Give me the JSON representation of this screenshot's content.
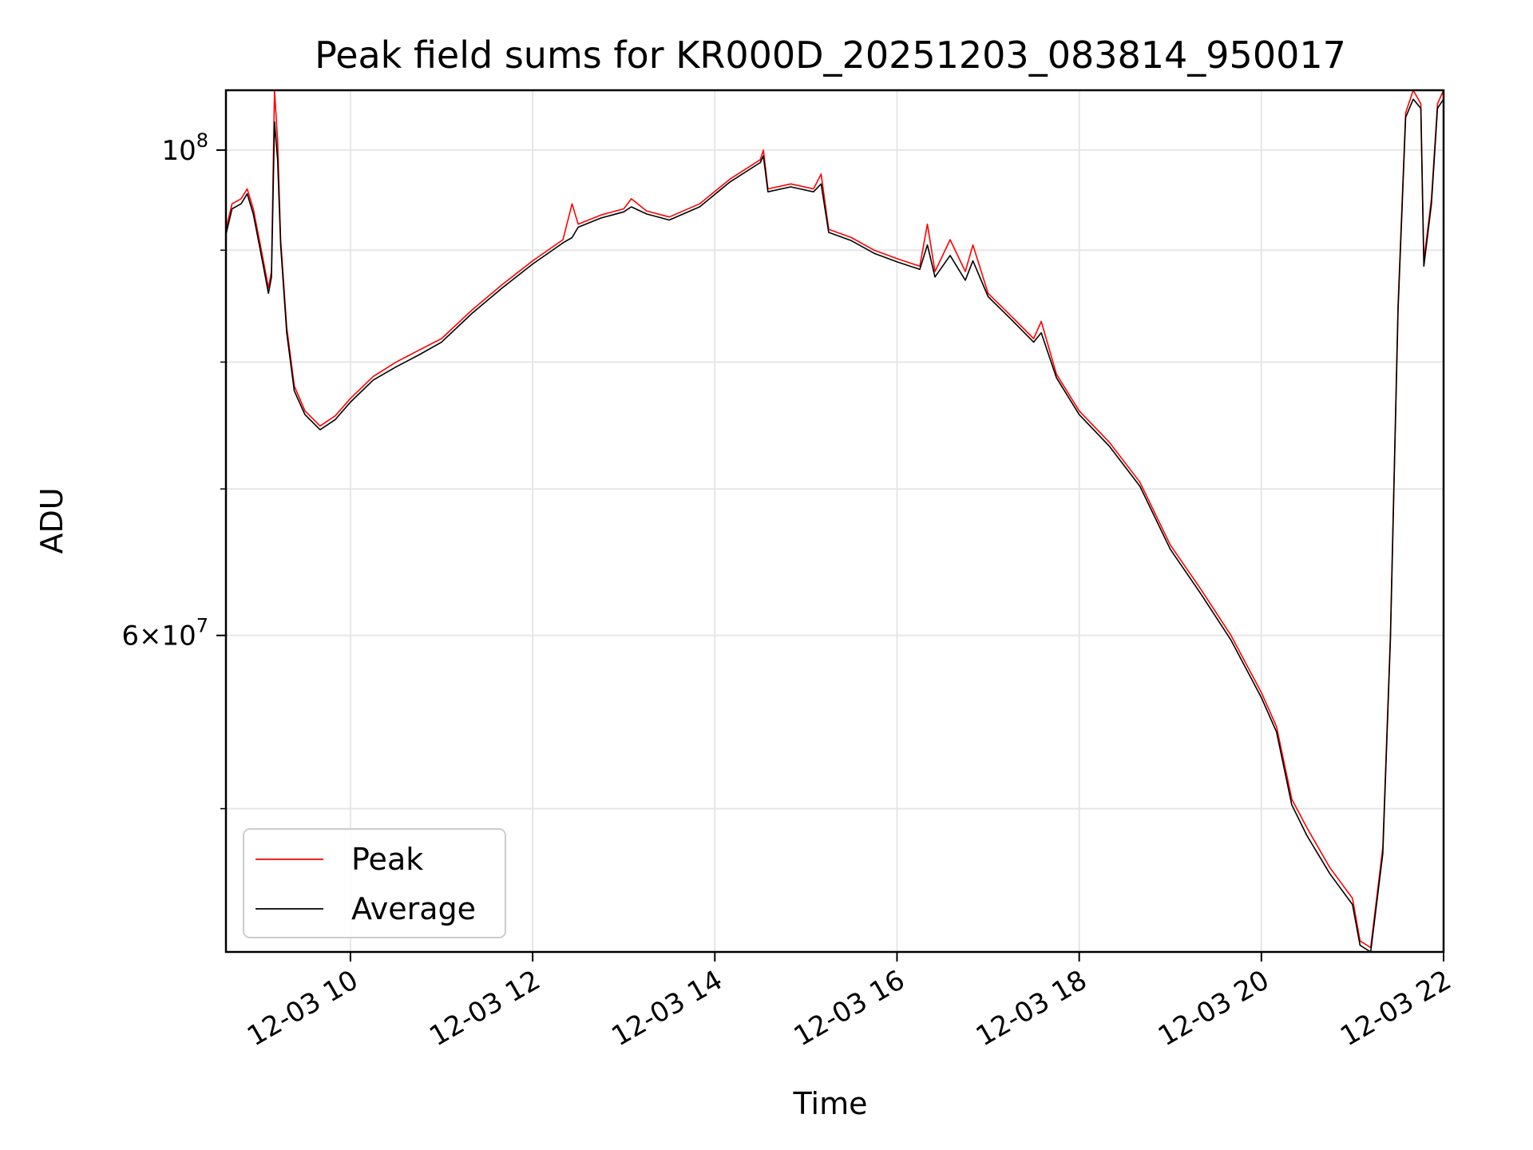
{
  "chart_data": {
    "type": "line",
    "title": "Peak field sums for KR000D_20251203_083814_950017",
    "xlabel": "Time",
    "ylabel": "ADU",
    "x_ticks": [
      "12-03 10",
      "12-03 12",
      "12-03 14",
      "12-03 16",
      "12-03 18",
      "12-03 20",
      "12-03 22"
    ],
    "y_ticks": [
      {
        "value": 60000000,
        "base": "6×10",
        "exp": "7"
      },
      {
        "value": 100000000,
        "base": "10",
        "exp": "8"
      }
    ],
    "y_minor_ticks": [
      50000000,
      70000000,
      80000000,
      90000000
    ],
    "y_scale": "log",
    "xlim": [
      "2025-12-03 08:38",
      "2025-12-03 22:00"
    ],
    "ylim": [
      43000000,
      106500000
    ],
    "grid": true,
    "legend_location": "lower-left",
    "colors": {
      "peak": "#ff0000",
      "average": "#000000",
      "grid": "#e6e6e6"
    },
    "series": [
      {
        "name": "Peak",
        "color": "#ff0000",
        "points": [
          [
            "2025-12-03 08:38",
            92000000
          ],
          [
            "2025-12-03 08:42",
            94500000
          ],
          [
            "2025-12-03 08:48",
            95000000
          ],
          [
            "2025-12-03 08:52",
            96000000
          ],
          [
            "2025-12-03 08:56",
            94000000
          ],
          [
            "2025-12-03 09:00",
            91000000
          ],
          [
            "2025-12-03 09:04",
            88000000
          ],
          [
            "2025-12-03 09:06",
            86500000
          ],
          [
            "2025-12-03 09:08",
            88000000
          ],
          [
            "2025-12-03 09:10",
            106500000
          ],
          [
            "2025-12-03 09:12",
            101000000
          ],
          [
            "2025-12-03 09:14",
            91000000
          ],
          [
            "2025-12-03 09:18",
            83000000
          ],
          [
            "2025-12-03 09:23",
            78000000
          ],
          [
            "2025-12-03 09:30",
            76000000
          ],
          [
            "2025-12-03 09:40",
            74800000
          ],
          [
            "2025-12-03 09:50",
            75600000
          ],
          [
            "2025-12-03 10:00",
            77000000
          ],
          [
            "2025-12-03 10:15",
            78800000
          ],
          [
            "2025-12-03 10:30",
            80000000
          ],
          [
            "2025-12-03 10:45",
            81000000
          ],
          [
            "2025-12-03 11:00",
            82000000
          ],
          [
            "2025-12-03 11:20",
            84500000
          ],
          [
            "2025-12-03 11:40",
            86800000
          ],
          [
            "2025-12-03 12:00",
            89000000
          ],
          [
            "2025-12-03 12:20",
            91000000
          ],
          [
            "2025-12-03 12:26",
            94500000
          ],
          [
            "2025-12-03 12:30",
            92500000
          ],
          [
            "2025-12-03 12:45",
            93400000
          ],
          [
            "2025-12-03 13:00",
            94000000
          ],
          [
            "2025-12-03 13:05",
            95000000
          ],
          [
            "2025-12-03 13:15",
            93800000
          ],
          [
            "2025-12-03 13:30",
            93200000
          ],
          [
            "2025-12-03 13:50",
            94500000
          ],
          [
            "2025-12-03 14:10",
            97000000
          ],
          [
            "2025-12-03 14:30",
            99000000
          ],
          [
            "2025-12-03 14:32",
            100000000
          ],
          [
            "2025-12-03 14:35",
            96000000
          ],
          [
            "2025-12-03 14:50",
            96500000
          ],
          [
            "2025-12-03 15:05",
            96000000
          ],
          [
            "2025-12-03 15:10",
            97500000
          ],
          [
            "2025-12-03 15:15",
            92000000
          ],
          [
            "2025-12-03 15:30",
            91200000
          ],
          [
            "2025-12-03 15:45",
            90000000
          ],
          [
            "2025-12-03 16:00",
            89200000
          ],
          [
            "2025-12-03 16:15",
            88500000
          ],
          [
            "2025-12-03 16:20",
            92500000
          ],
          [
            "2025-12-03 16:25",
            88000000
          ],
          [
            "2025-12-03 16:35",
            91000000
          ],
          [
            "2025-12-03 16:45",
            88000000
          ],
          [
            "2025-12-03 16:50",
            90500000
          ],
          [
            "2025-12-03 17:00",
            86000000
          ],
          [
            "2025-12-03 17:15",
            84000000
          ],
          [
            "2025-12-03 17:30",
            82000000
          ],
          [
            "2025-12-03 17:35",
            83500000
          ],
          [
            "2025-12-03 17:45",
            79000000
          ],
          [
            "2025-12-03 18:00",
            76000000
          ],
          [
            "2025-12-03 18:20",
            73500000
          ],
          [
            "2025-12-03 18:40",
            70500000
          ],
          [
            "2025-12-03 19:00",
            66000000
          ],
          [
            "2025-12-03 19:20",
            63000000
          ],
          [
            "2025-12-03 19:40",
            60000000
          ],
          [
            "2025-12-03 20:00",
            56500000
          ],
          [
            "2025-12-03 20:10",
            54500000
          ],
          [
            "2025-12-03 20:20",
            50500000
          ],
          [
            "2025-12-03 20:30",
            49000000
          ],
          [
            "2025-12-03 20:45",
            47000000
          ],
          [
            "2025-12-03 21:00",
            45500000
          ],
          [
            "2025-12-03 21:05",
            43500000
          ],
          [
            "2025-12-03 21:12",
            43200000
          ],
          [
            "2025-12-03 21:20",
            48000000
          ],
          [
            "2025-12-03 21:25",
            60000000
          ],
          [
            "2025-12-03 21:30",
            85000000
          ],
          [
            "2025-12-03 21:35",
            104000000
          ],
          [
            "2025-12-03 21:40",
            106500000
          ],
          [
            "2025-12-03 21:45",
            105000000
          ],
          [
            "2025-12-03 21:47",
            89000000
          ],
          [
            "2025-12-03 21:52",
            95000000
          ],
          [
            "2025-12-03 21:56",
            105000000
          ],
          [
            "2025-12-03 22:00",
            106500000
          ]
        ]
      },
      {
        "name": "Average",
        "color": "#000000",
        "points": [
          [
            "2025-12-03 08:38",
            91500000
          ],
          [
            "2025-12-03 08:42",
            94000000
          ],
          [
            "2025-12-03 08:48",
            94500000
          ],
          [
            "2025-12-03 08:52",
            95500000
          ],
          [
            "2025-12-03 08:56",
            93500000
          ],
          [
            "2025-12-03 09:00",
            90500000
          ],
          [
            "2025-12-03 09:04",
            87500000
          ],
          [
            "2025-12-03 09:06",
            86000000
          ],
          [
            "2025-12-03 09:08",
            87500000
          ],
          [
            "2025-12-03 09:10",
            103000000
          ],
          [
            "2025-12-03 09:12",
            99000000
          ],
          [
            "2025-12-03 09:14",
            90500000
          ],
          [
            "2025-12-03 09:18",
            82500000
          ],
          [
            "2025-12-03 09:23",
            77600000
          ],
          [
            "2025-12-03 09:30",
            75700000
          ],
          [
            "2025-12-03 09:40",
            74500000
          ],
          [
            "2025-12-03 09:50",
            75300000
          ],
          [
            "2025-12-03 10:00",
            76700000
          ],
          [
            "2025-12-03 10:15",
            78500000
          ],
          [
            "2025-12-03 10:30",
            79600000
          ],
          [
            "2025-12-03 10:45",
            80600000
          ],
          [
            "2025-12-03 11:00",
            81700000
          ],
          [
            "2025-12-03 11:20",
            84200000
          ],
          [
            "2025-12-03 11:40",
            86500000
          ],
          [
            "2025-12-03 12:00",
            88700000
          ],
          [
            "2025-12-03 12:20",
            90700000
          ],
          [
            "2025-12-03 12:26",
            91200000
          ],
          [
            "2025-12-03 12:30",
            92200000
          ],
          [
            "2025-12-03 12:45",
            93100000
          ],
          [
            "2025-12-03 13:00",
            93700000
          ],
          [
            "2025-12-03 13:05",
            94200000
          ],
          [
            "2025-12-03 13:15",
            93500000
          ],
          [
            "2025-12-03 13:30",
            92900000
          ],
          [
            "2025-12-03 13:50",
            94200000
          ],
          [
            "2025-12-03 14:10",
            96700000
          ],
          [
            "2025-12-03 14:30",
            98700000
          ],
          [
            "2025-12-03 14:32",
            99400000
          ],
          [
            "2025-12-03 14:35",
            95700000
          ],
          [
            "2025-12-03 14:50",
            96200000
          ],
          [
            "2025-12-03 15:05",
            95700000
          ],
          [
            "2025-12-03 15:10",
            96500000
          ],
          [
            "2025-12-03 15:15",
            91700000
          ],
          [
            "2025-12-03 15:30",
            90900000
          ],
          [
            "2025-12-03 15:45",
            89700000
          ],
          [
            "2025-12-03 16:00",
            88900000
          ],
          [
            "2025-12-03 16:15",
            88200000
          ],
          [
            "2025-12-03 16:20",
            90500000
          ],
          [
            "2025-12-03 16:25",
            87500000
          ],
          [
            "2025-12-03 16:35",
            89500000
          ],
          [
            "2025-12-03 16:45",
            87200000
          ],
          [
            "2025-12-03 16:50",
            89000000
          ],
          [
            "2025-12-03 17:00",
            85700000
          ],
          [
            "2025-12-03 17:15",
            83700000
          ],
          [
            "2025-12-03 17:30",
            81700000
          ],
          [
            "2025-12-03 17:35",
            82500000
          ],
          [
            "2025-12-03 17:45",
            78700000
          ],
          [
            "2025-12-03 18:00",
            75700000
          ],
          [
            "2025-12-03 18:20",
            73200000
          ],
          [
            "2025-12-03 18:40",
            70200000
          ],
          [
            "2025-12-03 19:00",
            65700000
          ],
          [
            "2025-12-03 19:20",
            62700000
          ],
          [
            "2025-12-03 19:40",
            59700000
          ],
          [
            "2025-12-03 20:00",
            56200000
          ],
          [
            "2025-12-03 20:10",
            54200000
          ],
          [
            "2025-12-03 20:20",
            50200000
          ],
          [
            "2025-12-03 20:30",
            48600000
          ],
          [
            "2025-12-03 20:45",
            46700000
          ],
          [
            "2025-12-03 21:00",
            45200000
          ],
          [
            "2025-12-03 21:05",
            43300000
          ],
          [
            "2025-12-03 21:12",
            43000000
          ],
          [
            "2025-12-03 21:20",
            47700000
          ],
          [
            "2025-12-03 21:25",
            59700000
          ],
          [
            "2025-12-03 21:30",
            84500000
          ],
          [
            "2025-12-03 21:35",
            103500000
          ],
          [
            "2025-12-03 21:40",
            105500000
          ],
          [
            "2025-12-03 21:45",
            104500000
          ],
          [
            "2025-12-03 21:47",
            88500000
          ],
          [
            "2025-12-03 21:52",
            94500000
          ],
          [
            "2025-12-03 21:56",
            104500000
          ],
          [
            "2025-12-03 22:00",
            105500000
          ]
        ]
      }
    ]
  }
}
